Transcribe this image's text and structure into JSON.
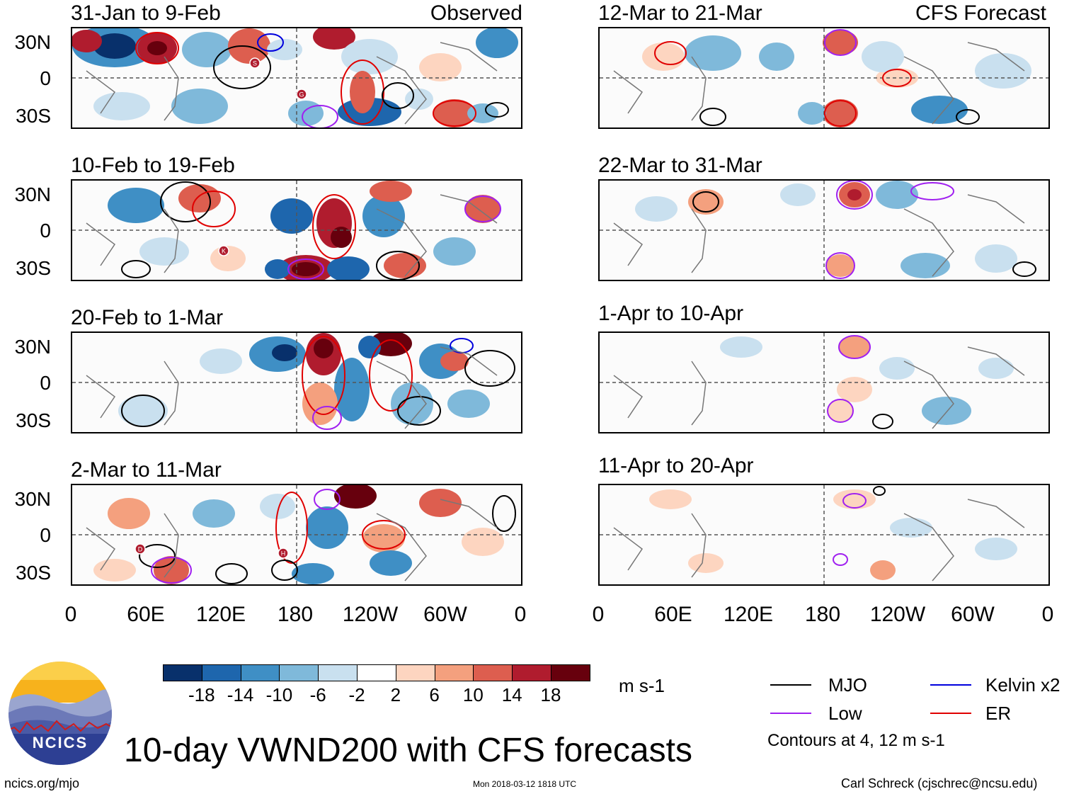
{
  "panels": {
    "obs1": {
      "title": "31-Jan to 9-Feb",
      "tag": "Observed"
    },
    "obs2": {
      "title": "10-Feb to 19-Feb"
    },
    "obs3": {
      "title": "20-Feb to 1-Mar"
    },
    "obs4": {
      "title": "2-Mar to 11-Mar"
    },
    "fc1": {
      "title": "12-Mar to 21-Mar",
      "tag": "CFS Forecast"
    },
    "fc2": {
      "title": "22-Mar to 31-Mar"
    },
    "fc3": {
      "title": "1-Apr to 10-Apr"
    },
    "fc4": {
      "title": "11-Apr to 20-Apr"
    }
  },
  "axes": {
    "lat_labels": [
      "30N",
      "0",
      "30S"
    ],
    "lon_labels": [
      "0",
      "60E",
      "120E",
      "180",
      "120W",
      "60W",
      "0"
    ]
  },
  "colorbar": {
    "labels": [
      "-18",
      "-14",
      "-10",
      "-6",
      "-2",
      "2",
      "6",
      "10",
      "14",
      "18"
    ],
    "colors": [
      "#08306b",
      "#1e66ad",
      "#3f8fc5",
      "#7fb9da",
      "#c9e0ef",
      "#ffffff",
      "#fdd5c0",
      "#f4a07e",
      "#dd5e4f",
      "#b01c2e",
      "#67000d"
    ],
    "units": "m s-1"
  },
  "legend": {
    "items": [
      {
        "label": "MJO",
        "color": "#000000"
      },
      {
        "label": "Kelvin x2",
        "color": "#0000dd"
      },
      {
        "label": "Low",
        "color": "#a020f0"
      },
      {
        "label": "ER",
        "color": "#e00000"
      }
    ],
    "note": "Contours at 4, 12 m s-1"
  },
  "logo": {
    "text": "NCICS"
  },
  "footer": {
    "title": "10-day VWND200 with CFS forecasts",
    "url": "ncics.org/mjo",
    "timestamp": "Mon 2018-03-12 1818 UTC",
    "credit": "Carl Schreck (cjschrec@ncsu.edu)"
  },
  "storm_markers": [
    {
      "panel": "obs1",
      "letter": "S"
    },
    {
      "panel": "obs1",
      "letter": "G"
    },
    {
      "panel": "obs2",
      "letter": "K"
    },
    {
      "panel": "obs4",
      "letter": "D"
    },
    {
      "panel": "obs4",
      "letter": "H"
    }
  ]
}
